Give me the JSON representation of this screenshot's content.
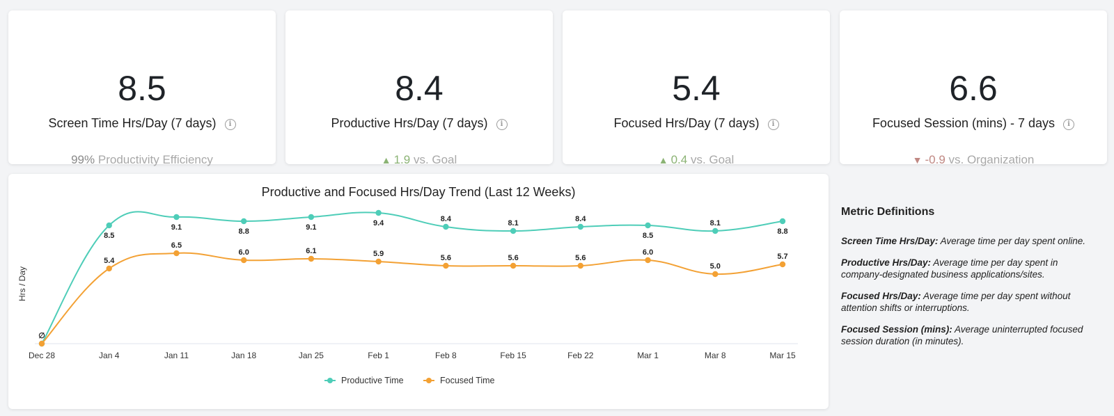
{
  "kpis": [
    {
      "value": "8.5",
      "label": "Screen Time Hrs/Day (7 days)",
      "foot_number": "99%",
      "foot_text": "Productivity Efficiency"
    },
    {
      "value": "8.4",
      "label": "Productive Hrs/Day (7 days)",
      "foot_arrow": "▲",
      "foot_number": "1.9",
      "foot_text": "vs. Goal"
    },
    {
      "value": "5.4",
      "label": "Focused Hrs/Day (7 days)",
      "foot_arrow": "▲",
      "foot_number": "0.4",
      "foot_text": "vs. Goal"
    },
    {
      "value": "6.6",
      "label": "Focused Session (mins) - 7 days",
      "foot_arrow": "▼",
      "foot_number": "-0.9",
      "foot_text": "vs. Organization"
    }
  ],
  "info_icon": "info-icon",
  "colors": {
    "productive": "#4ecdb8",
    "focused": "#f3a134",
    "up": "#8bb374",
    "down": "#c08883"
  },
  "chart_data": {
    "type": "line",
    "title": "Productive and Focused Hrs/Day Trend (Last 12 Weeks)",
    "ylabel": "Hrs / Day",
    "xlabel": "",
    "categories": [
      "Dec 28",
      "Jan 4",
      "Jan 11",
      "Jan 18",
      "Jan 25",
      "Feb 1",
      "Feb 8",
      "Feb 15",
      "Feb 22",
      "Mar 1",
      "Mar 8",
      "Mar 15"
    ],
    "ylim": [
      0,
      10
    ],
    "grid": false,
    "legend_position": "bottom",
    "series": [
      {
        "name": "Productive Time",
        "values": [
          0,
          8.5,
          9.1,
          8.8,
          9.1,
          9.4,
          8.4,
          8.1,
          8.4,
          8.5,
          8.1,
          8.8
        ],
        "labels": [
          "",
          "8.5",
          "9.1",
          "8.8",
          "9.1",
          "9.4",
          "8.4",
          "8.1",
          "8.4",
          "8.5",
          "8.1",
          "8.8"
        ]
      },
      {
        "name": "Focused Time",
        "values": [
          0,
          5.4,
          6.5,
          6.0,
          6.1,
          5.9,
          5.6,
          5.6,
          5.6,
          6.0,
          5.0,
          5.7
        ],
        "labels": [
          "∅",
          "5.4",
          "6.5",
          "6.0",
          "6.1",
          "5.9",
          "5.6",
          "5.6",
          "5.6",
          "6.0",
          "5.0",
          "5.7"
        ]
      }
    ]
  },
  "definitions": {
    "title": "Metric Definitions",
    "items": [
      {
        "term": "Screen Time Hrs/Day:",
        "text": "Average time per day spent online."
      },
      {
        "term": "Productive Hrs/Day:",
        "text": "Average time per day spent in company-designated business applications/sites."
      },
      {
        "term": "Focused Hrs/Day:",
        "text": "Average time per day spent without attention shifts or interruptions."
      },
      {
        "term": "Focused Session (mins):",
        "text": "Average uninterrupted focused session duration (in minutes)."
      }
    ]
  }
}
